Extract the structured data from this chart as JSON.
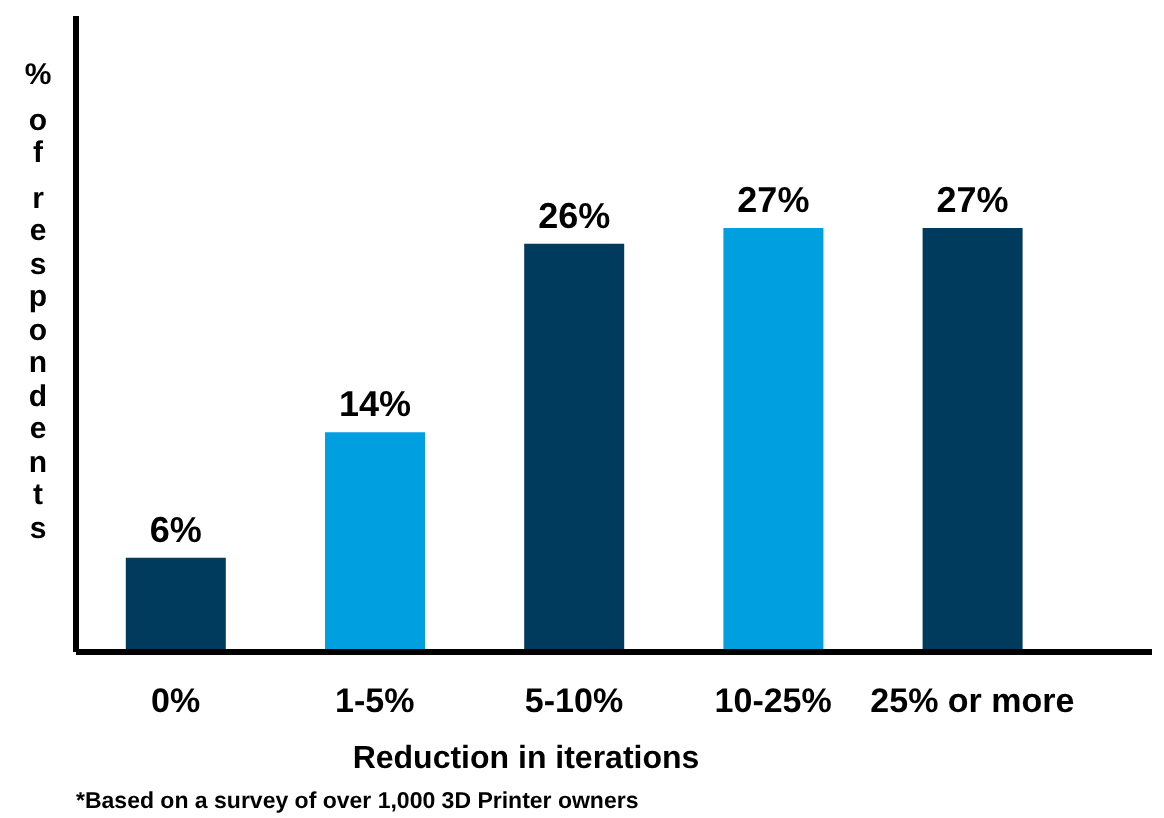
{
  "chart_data": {
    "type": "bar",
    "ylabel": "% of respondents",
    "xlabel": "Reduction in iterations",
    "categories": [
      "0%",
      "1-5%",
      "5-10%",
      "10-25%",
      "25% or more"
    ],
    "values": [
      6,
      14,
      26,
      27,
      27
    ],
    "colors": [
      "#003a5c",
      "#009fdf",
      "#003a5c",
      "#009fdf",
      "#003a5c"
    ],
    "value_labels": [
      "6%",
      "14%",
      "26%",
      "27%",
      "27%"
    ],
    "annotations": [
      "*Based on a survey of over 1,000 3D Printer owners"
    ]
  }
}
